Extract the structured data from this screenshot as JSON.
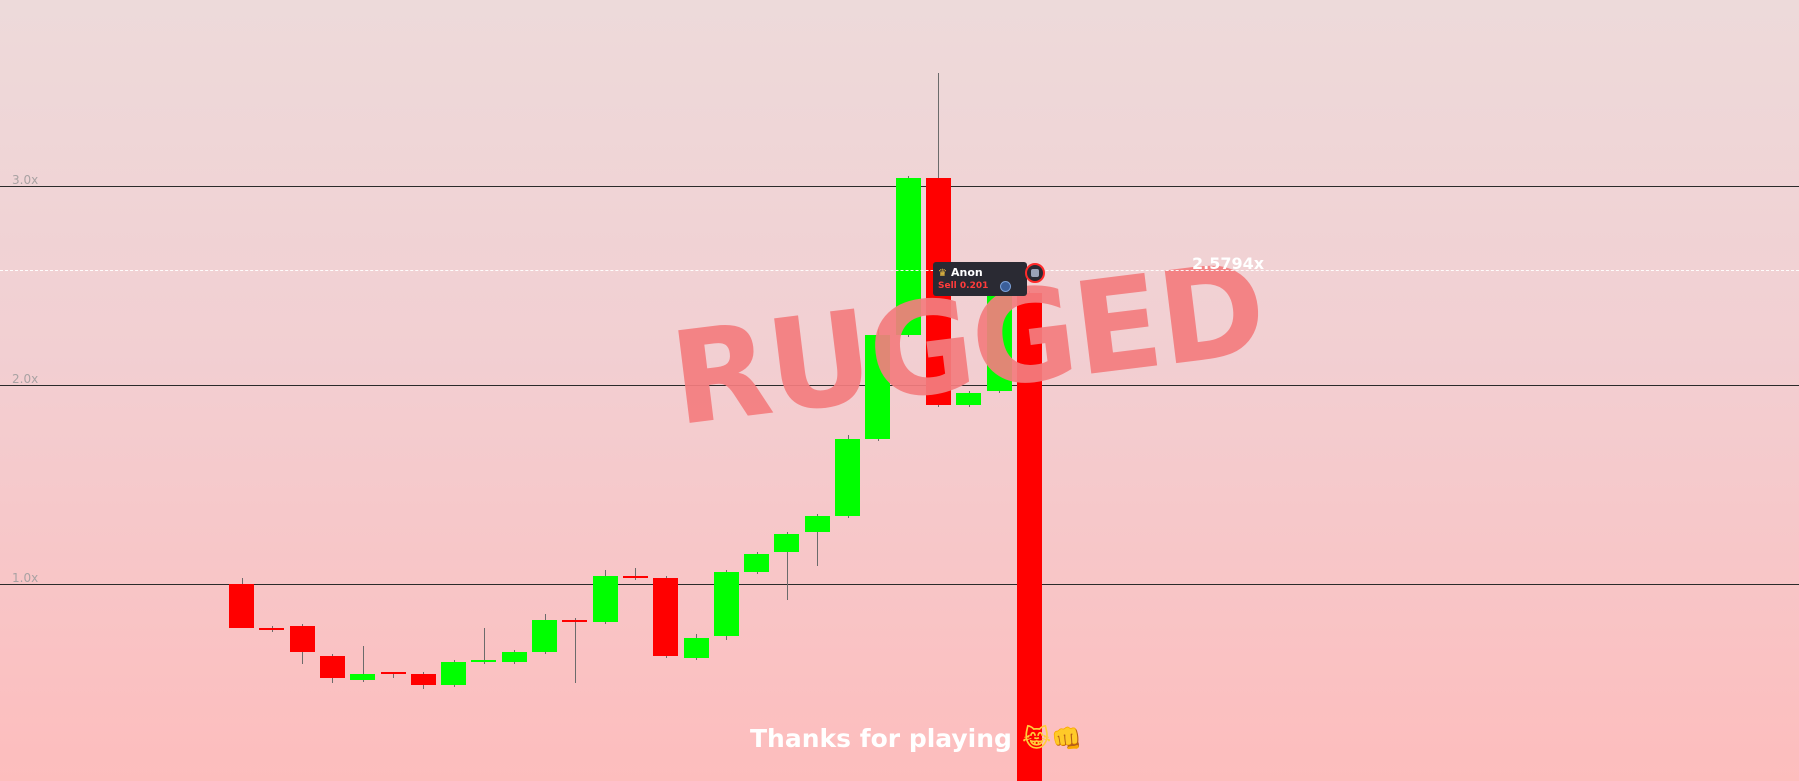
{
  "chart_data": {
    "type": "candlestick",
    "y_scale_unit": "x",
    "y_gridlines": [
      {
        "value": 1.0,
        "label": "1.0x"
      },
      {
        "value": 2.0,
        "label": "2.0x"
      },
      {
        "value": 3.0,
        "label": "3.0x"
      }
    ],
    "current_value": 2.5794,
    "current_label": "2.5794x",
    "colors": {
      "up": "#00ff00",
      "down": "#ff0000",
      "wick": "#6b6b6b"
    },
    "candles": [
      {
        "open": 1.0,
        "close": 0.78,
        "high": 1.03,
        "low": 0.78
      },
      {
        "open": 0.78,
        "close": 0.77,
        "high": 0.79,
        "low": 0.76
      },
      {
        "open": 0.79,
        "close": 0.66,
        "high": 0.8,
        "low": 0.6
      },
      {
        "open": 0.64,
        "close": 0.53,
        "high": 0.65,
        "low": 0.5
      },
      {
        "open": 0.52,
        "close": 0.55,
        "high": 0.69,
        "low": 0.51
      },
      {
        "open": 0.56,
        "close": 0.55,
        "high": 0.56,
        "low": 0.53
      },
      {
        "open": 0.55,
        "close": 0.49,
        "high": 0.56,
        "low": 0.47
      },
      {
        "open": 0.49,
        "close": 0.61,
        "high": 0.62,
        "low": 0.48
      },
      {
        "open": 0.61,
        "close": 0.62,
        "high": 0.78,
        "low": 0.6
      },
      {
        "open": 0.61,
        "close": 0.66,
        "high": 0.67,
        "low": 0.6
      },
      {
        "open": 0.66,
        "close": 0.82,
        "high": 0.85,
        "low": 0.65
      },
      {
        "open": 0.82,
        "close": 0.81,
        "high": 0.83,
        "low": 0.5
      },
      {
        "open": 0.81,
        "close": 1.04,
        "high": 1.07,
        "low": 0.8
      },
      {
        "open": 1.04,
        "close": 1.03,
        "high": 1.08,
        "low": 1.02
      },
      {
        "open": 1.03,
        "close": 0.64,
        "high": 1.04,
        "low": 0.63
      },
      {
        "open": 0.63,
        "close": 0.73,
        "high": 0.75,
        "low": 0.62
      },
      {
        "open": 0.74,
        "close": 1.06,
        "high": 1.07,
        "low": 0.72
      },
      {
        "open": 1.06,
        "close": 1.15,
        "high": 1.16,
        "low": 1.05
      },
      {
        "open": 1.16,
        "close": 1.25,
        "high": 1.26,
        "low": 0.92
      },
      {
        "open": 1.26,
        "close": 1.34,
        "high": 1.35,
        "low": 1.09
      },
      {
        "open": 1.34,
        "close": 1.73,
        "high": 1.75,
        "low": 1.33
      },
      {
        "open": 1.73,
        "close": 2.25,
        "high": 2.28,
        "low": 1.72
      },
      {
        "open": 2.25,
        "close": 3.04,
        "high": 3.05,
        "low": 2.24
      },
      {
        "open": 3.04,
        "close": 1.9,
        "high": 3.57,
        "low": 1.89
      },
      {
        "open": 1.9,
        "close": 1.96,
        "high": 1.97,
        "low": 1.89
      },
      {
        "open": 1.97,
        "close": 2.52,
        "high": 2.55,
        "low": 1.96
      },
      {
        "open": 2.46,
        "close": -0.1,
        "high": 2.47,
        "low": -0.1
      }
    ]
  },
  "overlay": {
    "rugged_text": "RUGGED",
    "footer_text": "Thanks for playing",
    "footer_emoji": "😹👊"
  },
  "trade_tooltip": {
    "crown_icon": "crown-icon",
    "username": "Anon",
    "trade_text": "Sell 0.201",
    "coin_icon": "coin-icon"
  }
}
